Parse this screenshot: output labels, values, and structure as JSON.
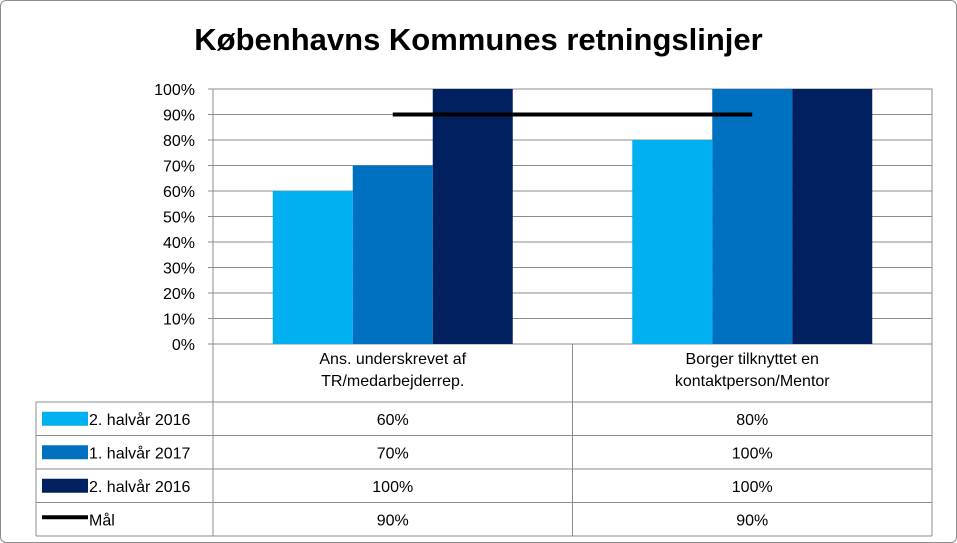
{
  "chart_data": {
    "type": "bar",
    "title": "Københavns Kommunes retningslinjer",
    "categories": [
      [
        "Ans. underskrevet af",
        "TR/medarbejderrep."
      ],
      [
        "Borger tilknyttet en",
        "kontaktperson/Mentor"
      ]
    ],
    "series": [
      {
        "name": "2. halvår 2016",
        "values": [
          60,
          80
        ],
        "color": "#00b0f0",
        "display": [
          "60%",
          "80%"
        ]
      },
      {
        "name": "1. halvår 2017",
        "values": [
          70,
          100
        ],
        "color": "#0070c0",
        "display": [
          "70%",
          "100%"
        ]
      },
      {
        "name": "2. halvår 2016",
        "values": [
          100,
          100
        ],
        "color": "#002060",
        "display": [
          "100%",
          "100%"
        ]
      }
    ],
    "target_line": {
      "name": "Mål",
      "value": 90,
      "color": "#000000",
      "display": [
        "90%",
        "90%"
      ]
    },
    "yticks": [
      "0%",
      "10%",
      "20%",
      "30%",
      "40%",
      "50%",
      "60%",
      "70%",
      "80%",
      "90%",
      "100%"
    ],
    "ylim": [
      0,
      100
    ],
    "grid": true,
    "legend": "data-table"
  }
}
